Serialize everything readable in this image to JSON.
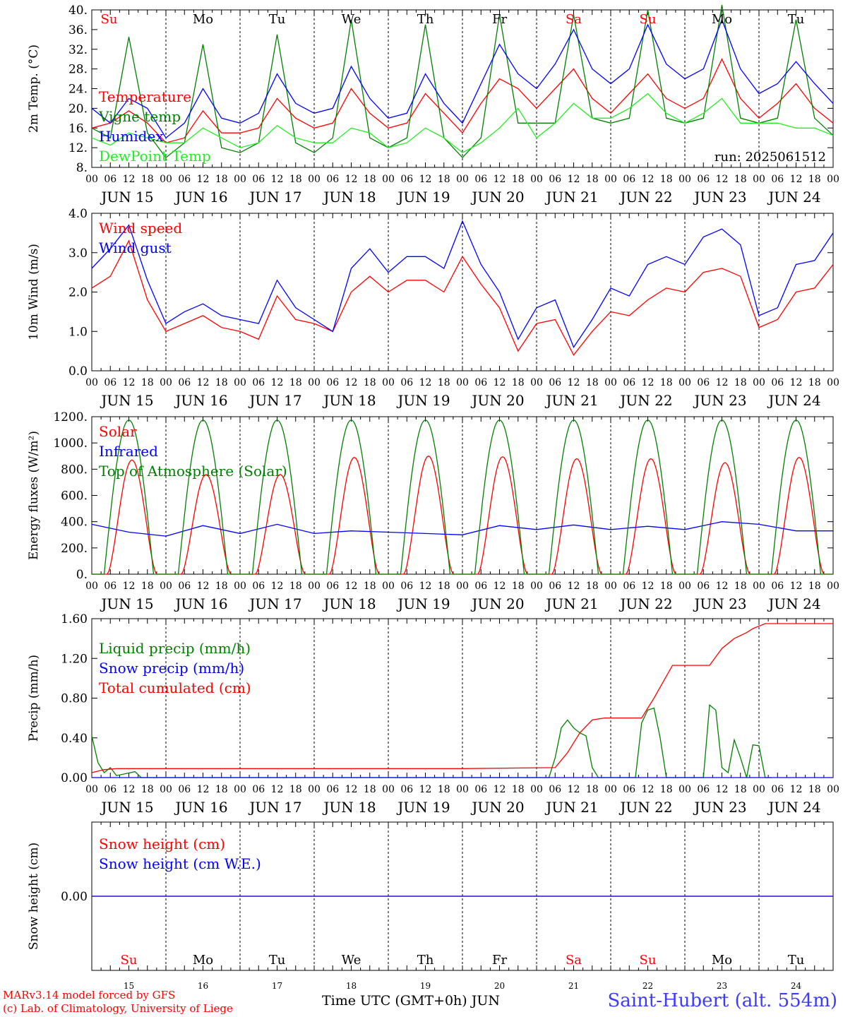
{
  "chart_data": [
    {
      "type": "line",
      "ylabel": "2m Temp. (°C)",
      "ylim": [
        8,
        40
      ],
      "yticks": [
        "8.",
        "12.",
        "16.",
        "20.",
        "24.",
        "28.",
        "32.",
        "36.",
        "40."
      ],
      "annotation": "run: 2025061512",
      "legend_placement": "left",
      "series": [
        {
          "name": "Temperature",
          "color": "#ff0000",
          "x": [
            0,
            6,
            12,
            18,
            24,
            30,
            36,
            42,
            48,
            54,
            60,
            66,
            72,
            78,
            84,
            90,
            96,
            102,
            108,
            114,
            120,
            126,
            132,
            138,
            144,
            150,
            156,
            162,
            168,
            174,
            180,
            186,
            192,
            198,
            204,
            210,
            216,
            222,
            228,
            234,
            240
          ],
          "y": [
            16,
            17,
            19.5,
            17,
            13,
            14,
            19.5,
            15,
            15,
            16,
            22,
            18,
            16,
            17,
            24,
            19,
            16,
            17,
            23,
            19,
            15,
            21,
            26,
            24,
            20,
            24,
            28,
            22,
            19,
            23,
            27,
            22,
            20,
            22,
            30,
            22,
            18,
            21,
            25,
            20,
            17
          ]
        },
        {
          "name": "Vigne temp",
          "color": "#008000",
          "x": [
            0,
            6,
            12,
            18,
            24,
            30,
            36,
            42,
            48,
            54,
            60,
            66,
            72,
            78,
            84,
            90,
            96,
            102,
            108,
            114,
            120,
            126,
            132,
            138,
            144,
            150,
            156,
            162,
            168,
            174,
            180,
            186,
            192,
            198,
            204,
            210,
            216,
            222,
            228,
            234,
            240
          ],
          "y": [
            16,
            14,
            34.5,
            15,
            10,
            13,
            33,
            12,
            11,
            13,
            35,
            13,
            11,
            14,
            38,
            14,
            12,
            14,
            37,
            14,
            10,
            14,
            39,
            17,
            17,
            17,
            39,
            18,
            17,
            18,
            40,
            18,
            17,
            18,
            41,
            18,
            17,
            18,
            38,
            18,
            14.5
          ]
        },
        {
          "name": "Humidex",
          "color": "#0000ff",
          "x": [
            0,
            6,
            12,
            18,
            24,
            30,
            36,
            42,
            48,
            54,
            60,
            66,
            72,
            78,
            84,
            90,
            96,
            102,
            108,
            114,
            120,
            126,
            132,
            138,
            144,
            150,
            156,
            162,
            168,
            174,
            180,
            186,
            192,
            198,
            204,
            210,
            216,
            222,
            228,
            234,
            240
          ],
          "y": [
            20,
            17,
            22,
            20,
            14,
            17,
            24,
            18,
            17,
            19,
            27,
            21,
            19,
            20,
            28.5,
            22,
            18,
            19,
            27,
            21,
            17,
            25,
            33,
            27,
            24,
            29,
            36,
            28,
            25,
            28,
            37,
            29,
            26,
            28,
            38,
            28,
            23,
            25,
            29.5,
            25,
            21
          ]
        },
        {
          "name": "DewPoint Temp",
          "color": "#22ee22",
          "x": [
            0,
            6,
            12,
            18,
            24,
            30,
            36,
            42,
            48,
            54,
            60,
            66,
            72,
            78,
            84,
            90,
            96,
            102,
            108,
            114,
            120,
            126,
            132,
            138,
            144,
            150,
            156,
            162,
            168,
            174,
            180,
            186,
            192,
            198,
            204,
            210,
            216,
            222,
            228,
            234,
            240
          ],
          "y": [
            14,
            12.5,
            15,
            14,
            13,
            13,
            16,
            14,
            12,
            13,
            16.5,
            14,
            13,
            13,
            16,
            15,
            12,
            13,
            16,
            14,
            11,
            13,
            16,
            20,
            14,
            17,
            21,
            18,
            18,
            20,
            23,
            19,
            17,
            19,
            22,
            17,
            17,
            17,
            16,
            16,
            14.5
          ]
        }
      ]
    },
    {
      "type": "line",
      "ylabel": "10m Wind (m/s)",
      "ylim": [
        0,
        4
      ],
      "yticks": [
        "0.0",
        "1.0",
        "2.0",
        "3.0",
        "4.0"
      ],
      "legend_placement": "left",
      "series": [
        {
          "name": "Wind speed",
          "color": "#ff0000",
          "x": [
            0,
            6,
            12,
            18,
            24,
            30,
            36,
            42,
            48,
            54,
            60,
            66,
            72,
            78,
            84,
            90,
            96,
            102,
            108,
            114,
            120,
            126,
            132,
            138,
            144,
            150,
            156,
            162,
            168,
            174,
            180,
            186,
            192,
            198,
            204,
            210,
            216,
            222,
            228,
            234,
            240
          ],
          "y": [
            2.1,
            2.4,
            3.3,
            1.8,
            1.0,
            1.2,
            1.4,
            1.1,
            1.0,
            0.8,
            1.9,
            1.3,
            1.2,
            1.0,
            2.0,
            2.4,
            2.0,
            2.3,
            2.3,
            2.0,
            2.9,
            2.2,
            1.6,
            0.5,
            1.2,
            1.3,
            0.4,
            1.0,
            1.5,
            1.4,
            1.8,
            2.1,
            2.0,
            2.5,
            2.6,
            2.4,
            1.1,
            1.3,
            2.0,
            2.1,
            2.7
          ]
        },
        {
          "name": "Wind gust",
          "color": "#0000ff",
          "x": [
            0,
            6,
            12,
            18,
            24,
            30,
            36,
            42,
            48,
            54,
            60,
            66,
            72,
            78,
            84,
            90,
            96,
            102,
            108,
            114,
            120,
            126,
            132,
            138,
            144,
            150,
            156,
            162,
            168,
            174,
            180,
            186,
            192,
            198,
            204,
            210,
            216,
            222,
            228,
            234,
            240
          ],
          "y": [
            2.6,
            3.1,
            3.7,
            2.3,
            1.2,
            1.5,
            1.7,
            1.4,
            1.3,
            1.2,
            2.3,
            1.6,
            1.3,
            1.0,
            2.6,
            3.1,
            2.5,
            2.9,
            2.9,
            2.6,
            3.8,
            2.7,
            2.0,
            0.8,
            1.6,
            1.8,
            0.6,
            1.3,
            2.1,
            1.9,
            2.7,
            2.9,
            2.7,
            3.4,
            3.6,
            3.2,
            1.4,
            1.6,
            2.7,
            2.8,
            3.5
          ]
        }
      ]
    },
    {
      "type": "line",
      "ylabel": "Energy fluxes (W/m²)",
      "ylim": [
        0,
        1200
      ],
      "yticks": [
        "0.",
        "200.",
        "400.",
        "600.",
        "800.",
        "1000.",
        "1200."
      ],
      "legend_placement": "left",
      "series": [
        {
          "name": "Solar",
          "color": "#ff0000",
          "peaks": [
            {
              "x": 13,
              "y": 870
            },
            {
              "x": 37,
              "y": 760
            },
            {
              "x": 61,
              "y": 760
            },
            {
              "x": 85,
              "y": 890
            },
            {
              "x": 109,
              "y": 900
            },
            {
              "x": 133,
              "y": 895
            },
            {
              "x": 157,
              "y": 880
            },
            {
              "x": 181,
              "y": 880
            },
            {
              "x": 205,
              "y": 850
            },
            {
              "x": 229,
              "y": 890
            }
          ]
        },
        {
          "name": "Infrared",
          "color": "#0000ff",
          "x": [
            0,
            12,
            24,
            36,
            48,
            60,
            72,
            84,
            96,
            108,
            120,
            132,
            144,
            156,
            168,
            180,
            192,
            204,
            216,
            228,
            240
          ],
          "y": [
            380,
            320,
            290,
            370,
            310,
            380,
            310,
            330,
            320,
            310,
            300,
            370,
            340,
            375,
            340,
            365,
            340,
            400,
            380,
            330,
            330
          ]
        },
        {
          "name": "Top of Atmosphere (Solar)",
          "color": "#008000",
          "peak": 1175,
          "rise_hour": 4,
          "set_hour": 20
        }
      ]
    },
    {
      "type": "line",
      "ylabel": "Precip (mm/h)",
      "ylim": [
        0,
        1.6
      ],
      "yticks": [
        "0.00",
        "0.40",
        "0.80",
        "1.20",
        "1.60"
      ],
      "legend_placement": "left",
      "series": [
        {
          "name": "Liquid precip (mm/h)",
          "color": "#008000",
          "x": [
            0,
            2,
            4,
            6,
            8,
            14,
            16,
            18,
            148,
            150,
            152,
            154,
            156,
            158,
            160,
            162,
            164,
            166,
            174,
            176,
            178,
            180,
            182,
            184,
            186,
            188,
            190,
            198,
            200,
            202,
            204,
            206,
            208,
            210,
            212,
            214,
            216,
            218,
            220
          ],
          "y": [
            0.42,
            0.15,
            0.05,
            0.1,
            0.02,
            0.06,
            0.0,
            0.0,
            0.0,
            0.2,
            0.5,
            0.58,
            0.5,
            0.45,
            0.42,
            0.1,
            0.0,
            0.0,
            0.0,
            0.0,
            0.55,
            0.68,
            0.7,
            0.4,
            0.0,
            0.0,
            0.0,
            0.0,
            0.73,
            0.68,
            0.1,
            0.05,
            0.38,
            0.2,
            0.0,
            0.33,
            0.32,
            0.0,
            0.0
          ]
        },
        {
          "name": "Snow precip (mm/h)",
          "color": "#0000ff",
          "x": [
            0,
            240
          ],
          "y": [
            0,
            0
          ]
        },
        {
          "name": "Total cumulated (cm)",
          "color": "#ff0000",
          "x": [
            0,
            4,
            8,
            120,
            150,
            154,
            158,
            162,
            166,
            178,
            182,
            188,
            200,
            204,
            208,
            212,
            214,
            218,
            240
          ],
          "y": [
            0.05,
            0.08,
            0.09,
            0.09,
            0.1,
            0.25,
            0.45,
            0.58,
            0.6,
            0.6,
            0.8,
            1.13,
            1.13,
            1.3,
            1.4,
            1.46,
            1.5,
            1.55,
            1.55
          ]
        }
      ]
    },
    {
      "type": "line",
      "ylabel": "Snow height (cm)",
      "ylim": [
        -1,
        1
      ],
      "yticks": [
        "0.00"
      ],
      "legend_placement": "left",
      "series": [
        {
          "name": "Snow height (cm)",
          "color": "#ff0000",
          "x": [
            0,
            240
          ],
          "y": [
            0,
            0
          ]
        },
        {
          "name": "Snow height (cm W.E.)",
          "color": "#0000ff",
          "x": [
            0,
            240
          ],
          "y": [
            0,
            0
          ]
        }
      ]
    }
  ],
  "x_axis": {
    "hour_labels": [
      "00",
      "06",
      "12",
      "18"
    ],
    "end_label": "00",
    "dates": [
      "JUN 15",
      "JUN 16",
      "JUN 17",
      "JUN 18",
      "JUN 19",
      "JUN 20",
      "JUN 21",
      "JUN 22",
      "JUN 23",
      "JUN 24"
    ],
    "weekdays": [
      "Su",
      "Mo",
      "Tu",
      "We",
      "Th",
      "Fr",
      "Sa",
      "Su",
      "Mo",
      "Tu"
    ],
    "weekend_flags": [
      true,
      false,
      false,
      false,
      false,
      false,
      true,
      true,
      false,
      false
    ],
    "day_numbers": [
      "15",
      "16",
      "17",
      "18",
      "19",
      "20",
      "21",
      "22",
      "23",
      "24"
    ],
    "xlabel": "Time UTC (GMT+0h) JUN"
  },
  "footer": {
    "credit_line1": "MARv3.14 model forced by GFS",
    "credit_line2": "(c) Lab. of Climatology, University of Liege",
    "station": "Saint-Hubert (alt. 554m)"
  },
  "colors": {
    "weekend": "#ff0000",
    "weekday": "#000000",
    "axis": "#000000",
    "station": "#3c3cff"
  }
}
